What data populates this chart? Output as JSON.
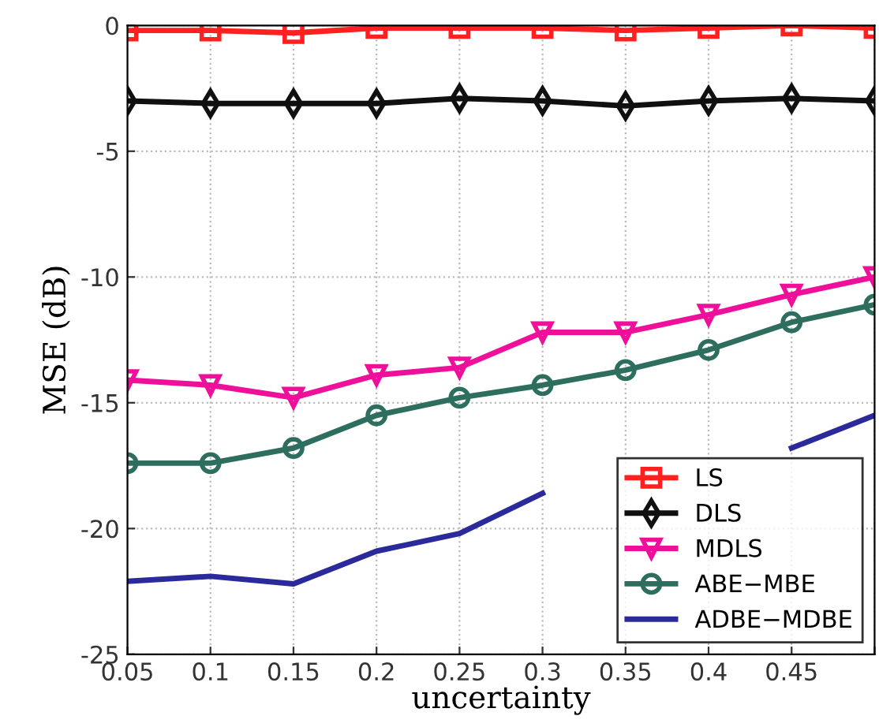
{
  "chart_data": {
    "type": "line",
    "xlabel": "uncertainty",
    "ylabel": "MSE (dB)",
    "x": [
      0.05,
      0.1,
      0.15,
      0.2,
      0.25,
      0.3,
      0.35,
      0.4,
      0.45,
      0.5
    ],
    "xlim": [
      0.05,
      0.5
    ],
    "ylim": [
      -25,
      0
    ],
    "xticks": [
      0.05,
      0.1,
      0.15,
      0.2,
      0.25,
      0.3,
      0.35,
      0.4,
      0.45,
      {
        "value": 0.5,
        "label": null
      }
    ],
    "yticks": [
      -25,
      -20,
      -15,
      -10,
      -5,
      0
    ],
    "grid": true,
    "legend": "bottom right",
    "series": [
      {
        "name": "LS",
        "color": "#ff2020",
        "marker": "square",
        "values": [
          -0.2,
          -0.2,
          -0.3,
          -0.1,
          -0.1,
          -0.1,
          -0.2,
          -0.1,
          0,
          -0.1
        ]
      },
      {
        "name": "DLS",
        "color": "#101010",
        "marker": "diamond",
        "values": [
          -3.0,
          -3.1,
          -3.1,
          -3.1,
          -2.9,
          -3.0,
          -3.2,
          -3.0,
          -2.9,
          -3.0
        ]
      },
      {
        "name": "MDLS",
        "color": "#ee0f9a",
        "marker": "triangle",
        "values": [
          -14.1,
          -14.3,
          -14.8,
          -13.9,
          -13.6,
          -12.2,
          -12.2,
          -11.5,
          -10.7,
          -10.0
        ]
      },
      {
        "name": "ABE−MBE",
        "color": "#2e6e5f",
        "marker": "circle",
        "values": [
          -17.4,
          -17.4,
          -16.8,
          -15.5,
          -14.8,
          -14.3,
          -13.7,
          -12.9,
          -11.8,
          -11.1
        ]
      },
      {
        "name": "ADBE−MDBE",
        "color": "#2a2a9a",
        "marker": "none",
        "values": [
          -22.1,
          -21.9,
          -22.2,
          -20.9,
          -20.2,
          -18.6,
          null,
          null,
          -16.8,
          -15.5
        ]
      }
    ]
  }
}
